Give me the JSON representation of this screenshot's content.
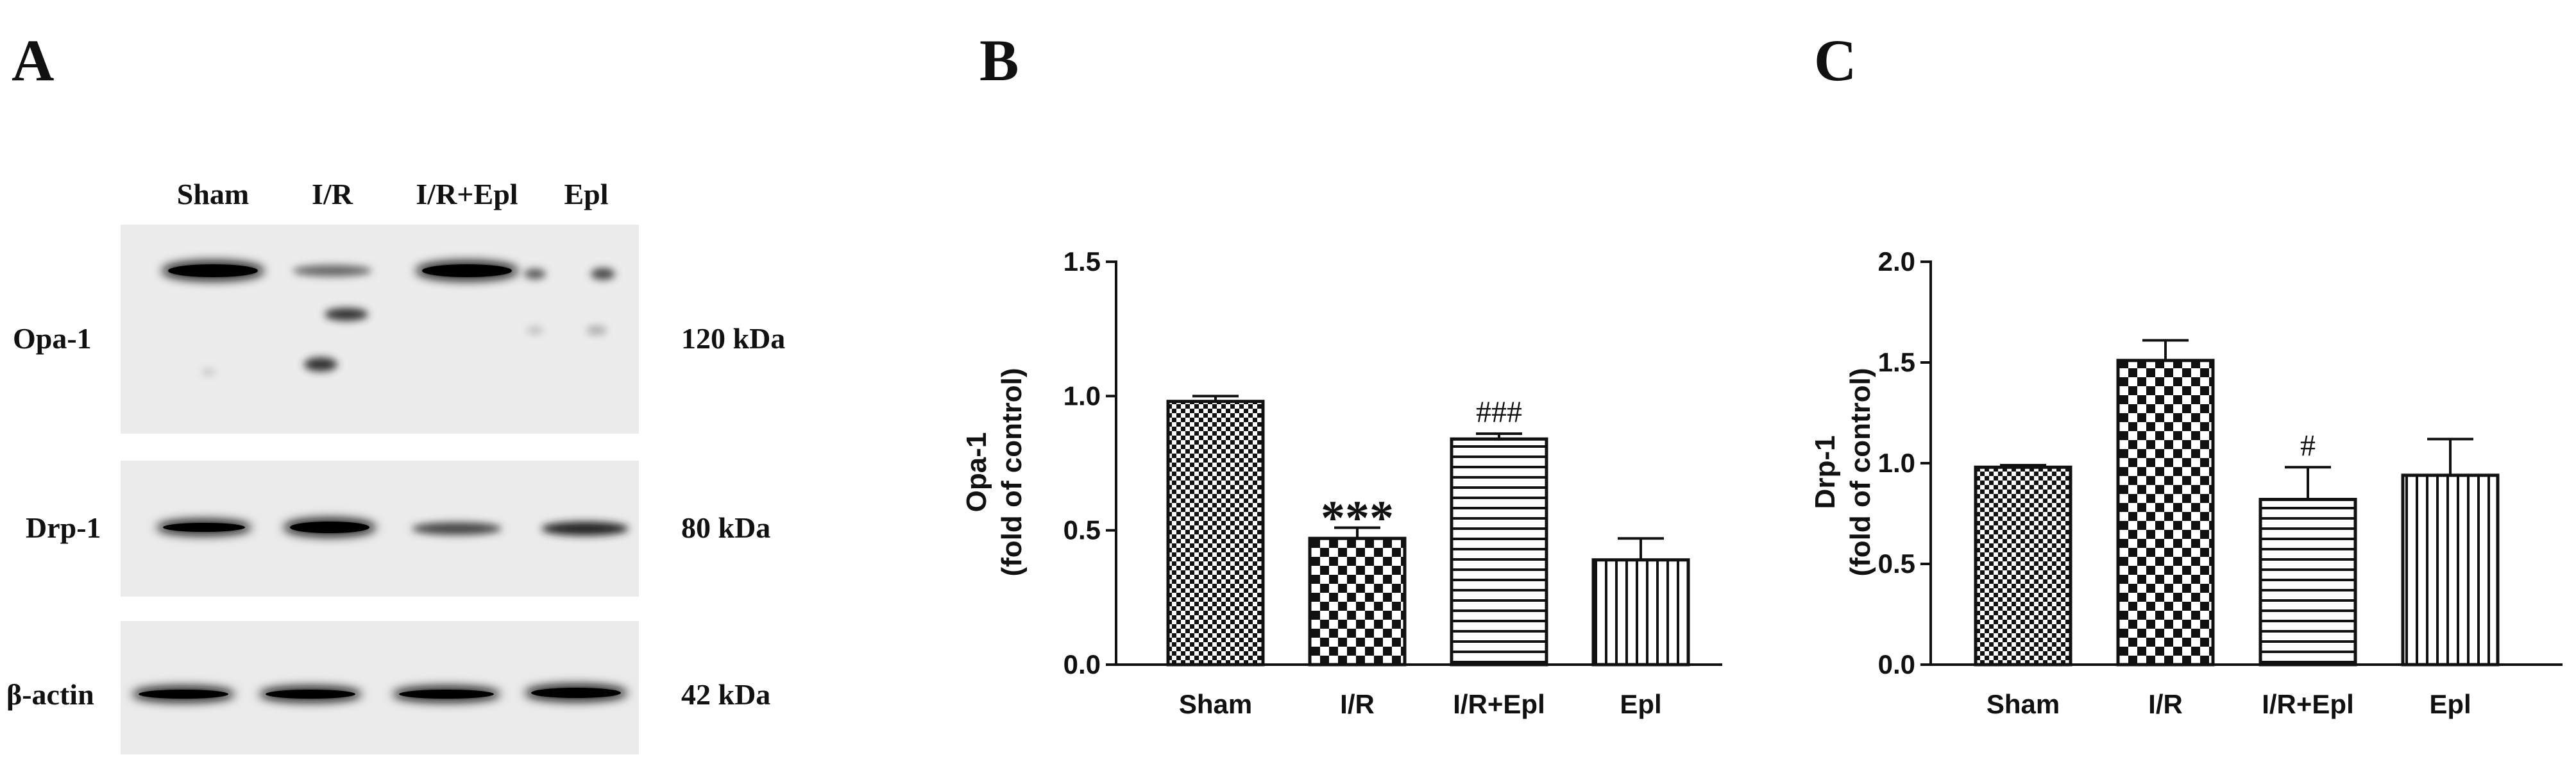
{
  "panels": {
    "a_letter": "A",
    "b_letter": "B",
    "c_letter": "C"
  },
  "blot": {
    "lanes": [
      "Sham",
      "I/R",
      "I/R+Epl",
      "Epl"
    ],
    "rows": [
      {
        "protein": "Opa-1",
        "size": "120 kDa"
      },
      {
        "protein": "Drp-1",
        "size": "80 kDa"
      },
      {
        "protein": "β-actin",
        "size": "42 kDa"
      }
    ]
  },
  "chart_data": [
    {
      "type": "bar",
      "panel": "B",
      "categories": [
        "Sham",
        "I/R",
        "I/R+Epl",
        "Epl"
      ],
      "values": [
        0.98,
        0.47,
        0.84,
        0.39
      ],
      "errors": [
        0.02,
        0.04,
        0.02,
        0.08
      ],
      "annotations": [
        "",
        "***",
        "###",
        ""
      ],
      "patterns": [
        "fine-check",
        "coarse-check",
        "horizontal",
        "vertical"
      ],
      "ylabel": "Opa-1",
      "ylabel2": "(fold of control)",
      "ylim": [
        0,
        1.5
      ],
      "yticks": [
        "0.0",
        "0.5",
        "1.0",
        "1.5"
      ],
      "grid": false
    },
    {
      "type": "bar",
      "panel": "C",
      "categories": [
        "Sham",
        "I/R",
        "I/R+Epl",
        "Epl"
      ],
      "values": [
        0.98,
        1.51,
        0.82,
        0.94
      ],
      "errors": [
        0.01,
        0.1,
        0.16,
        0.18
      ],
      "annotations": [
        "",
        "",
        "#",
        ""
      ],
      "patterns": [
        "fine-check",
        "coarse-check",
        "horizontal",
        "vertical"
      ],
      "ylabel": "Drp-1",
      "ylabel2": "(fold of control)",
      "ylim": [
        0,
        2.0
      ],
      "yticks": [
        "0.0",
        "0.5",
        "1.0",
        "1.5",
        "2.0"
      ],
      "grid": false
    }
  ]
}
